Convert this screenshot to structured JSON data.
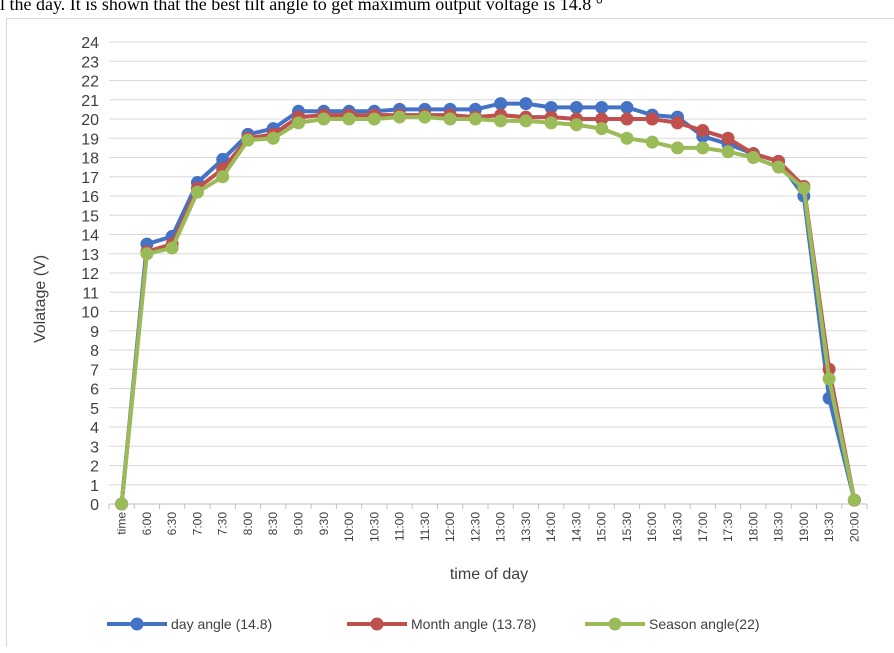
{
  "caption": "l the day. It is shown that the best tilt angle to get maximum output voltage is 14.8 °",
  "chart_data": {
    "type": "line",
    "title": "",
    "xlabel": "time of day",
    "ylabel": "Volatage (V)",
    "ylim": [
      0,
      24
    ],
    "yticks": [
      "0",
      "1",
      "2",
      "3",
      "4",
      "5",
      "6",
      "7",
      "8",
      "9",
      "10",
      "11",
      "12",
      "13",
      "14",
      "15",
      "16",
      "17",
      "18",
      "19",
      "20",
      "21",
      "22",
      "23",
      "24"
    ],
    "grid": true,
    "legend_position": "bottom",
    "categories": [
      "time",
      "6:00",
      "6:30",
      "7:00",
      "7:30",
      "8:00",
      "8:30",
      "9:00",
      "9:30",
      "10:00",
      "10:30",
      "11:00",
      "11:30",
      "12:00",
      "12:30",
      "13:00",
      "13:30",
      "14:00",
      "14:30",
      "15:00",
      "15:30",
      "16:00",
      "16:30",
      "17:00",
      "17:30",
      "18:00",
      "18:30",
      "19:00",
      "19:30",
      "20:00"
    ],
    "series": [
      {
        "name": "day angle (14.8)",
        "color": "#4472c4",
        "values": [
          0,
          13.5,
          13.9,
          16.7,
          17.9,
          19.2,
          19.5,
          20.4,
          20.4,
          20.4,
          20.4,
          20.5,
          20.5,
          20.5,
          20.5,
          20.8,
          20.8,
          20.6,
          20.6,
          20.6,
          20.6,
          20.2,
          20.1,
          19.1,
          18.7,
          18.2,
          17.8,
          16.0,
          5.5,
          0.2
        ]
      },
      {
        "name": "Month angle (13.78)",
        "color": "#c0504d",
        "values": [
          0,
          13.1,
          13.5,
          16.4,
          17.4,
          19.0,
          19.2,
          20.1,
          20.2,
          20.2,
          20.2,
          20.2,
          20.2,
          20.2,
          20.1,
          20.2,
          20.1,
          20.1,
          20.0,
          20.0,
          20.0,
          20.0,
          19.8,
          19.4,
          19.0,
          18.2,
          17.8,
          16.5,
          7.0,
          0.2
        ]
      },
      {
        "name": "Season angle(22)",
        "color": "#9bbb59",
        "values": [
          0,
          13.0,
          13.3,
          16.2,
          17.0,
          18.9,
          19.0,
          19.8,
          20.0,
          20.0,
          20.0,
          20.1,
          20.1,
          20.0,
          20.0,
          19.9,
          19.9,
          19.8,
          19.7,
          19.5,
          19.0,
          18.8,
          18.5,
          18.5,
          18.3,
          18.0,
          17.5,
          16.4,
          6.5,
          0.2
        ]
      }
    ]
  }
}
